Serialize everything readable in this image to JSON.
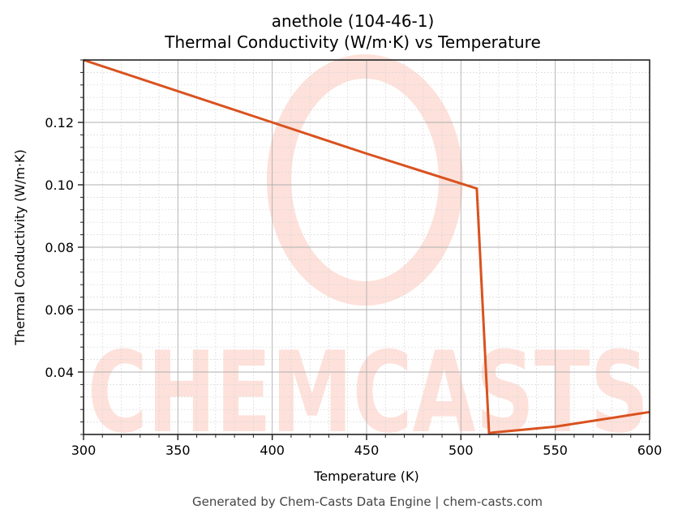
{
  "title": {
    "line1": "anethole (104-46-1)",
    "line2": "Thermal Conductivity (W/m·K) vs Temperature"
  },
  "axes": {
    "xlabel": "Temperature (K)",
    "ylabel": "Thermal Conductivity (W/m·K)",
    "xticks": [
      "300",
      "350",
      "400",
      "450",
      "500",
      "550",
      "600"
    ],
    "yticks": [
      "0.04",
      "0.06",
      "0.08",
      "0.10",
      "0.12"
    ]
  },
  "footer": "Generated by Chem-Casts Data Engine | chem-casts.com",
  "watermark": "CHEMCASTS",
  "colors": {
    "line": "#D9521F",
    "watermark": "#FDE1DA",
    "grid_major": "#B0B0B0",
    "grid_minor": "#D8D8D8"
  },
  "chart_data": {
    "type": "line",
    "title": "anethole (104-46-1)\nThermal Conductivity (W/m·K) vs Temperature",
    "xlabel": "Temperature (K)",
    "ylabel": "Thermal Conductivity (W/m·K)",
    "xlim": [
      300,
      600
    ],
    "ylim": [
      0.02,
      0.14
    ],
    "grid": true,
    "legend": null,
    "series": [
      {
        "name": "Thermal Conductivity",
        "color": "#D9521F",
        "x": [
          300,
          400,
          450,
          508.4,
          514.9,
          550,
          600
        ],
        "y": [
          0.14,
          0.12,
          0.11,
          0.0988,
          0.0205,
          0.0225,
          0.0272
        ]
      }
    ],
    "xticks": [
      300,
      350,
      400,
      450,
      500,
      550,
      600
    ],
    "yticks": [
      0.04,
      0.06,
      0.08,
      0.1,
      0.12
    ]
  }
}
